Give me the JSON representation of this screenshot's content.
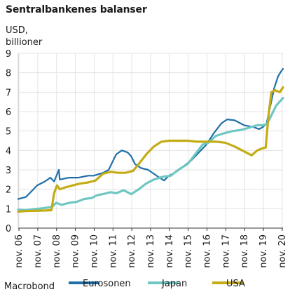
{
  "chart_data": {
    "type": "line",
    "title": "Sentralbankenes balanser",
    "ylabel_lines": [
      "USD,",
      "billioner"
    ],
    "source": "Macrobond",
    "ylim": [
      0,
      9
    ],
    "yticks": [
      0,
      1,
      2,
      3,
      4,
      5,
      6,
      7,
      8,
      9
    ],
    "xlim": [
      2006.79,
      2020.87
    ],
    "xticks": [
      {
        "x": 2006.83,
        "label": "nov. 06"
      },
      {
        "x": 2007.83,
        "label": "nov. 07"
      },
      {
        "x": 2008.83,
        "label": "nov. 08"
      },
      {
        "x": 2009.83,
        "label": "nov. 09"
      },
      {
        "x": 2010.83,
        "label": "nov. 10"
      },
      {
        "x": 2011.83,
        "label": "nov. 11"
      },
      {
        "x": 2012.83,
        "label": "nov. 12"
      },
      {
        "x": 2013.83,
        "label": "nov. 13"
      },
      {
        "x": 2014.83,
        "label": "nov. 14"
      },
      {
        "x": 2015.83,
        "label": "nov. 15"
      },
      {
        "x": 2016.83,
        "label": "nov. 16"
      },
      {
        "x": 2017.83,
        "label": "nov. 17"
      },
      {
        "x": 2018.83,
        "label": "nov. 18"
      },
      {
        "x": 2019.83,
        "label": "nov. 19"
      },
      {
        "x": 2020.83,
        "label": "nov. 20"
      }
    ],
    "grid": true,
    "legend_position": "bottom",
    "series": [
      {
        "name": "Eurosonen",
        "color": "#1f6fa8",
        "stroke_width": 2.2,
        "points": [
          [
            2006.79,
            1.5
          ],
          [
            2007.2,
            1.6
          ],
          [
            2007.5,
            1.9
          ],
          [
            2007.8,
            2.2
          ],
          [
            2008.2,
            2.4
          ],
          [
            2008.5,
            2.6
          ],
          [
            2008.7,
            2.4
          ],
          [
            2008.95,
            3.0
          ],
          [
            2009.0,
            2.5
          ],
          [
            2009.5,
            2.6
          ],
          [
            2010.0,
            2.6
          ],
          [
            2010.5,
            2.7
          ],
          [
            2010.8,
            2.7
          ],
          [
            2011.3,
            2.85
          ],
          [
            2011.6,
            3.0
          ],
          [
            2011.8,
            3.4
          ],
          [
            2012.0,
            3.8
          ],
          [
            2012.3,
            4.0
          ],
          [
            2012.6,
            3.9
          ],
          [
            2012.8,
            3.7
          ],
          [
            2013.0,
            3.3
          ],
          [
            2013.3,
            3.1
          ],
          [
            2013.7,
            3.0
          ],
          [
            2014.0,
            2.8
          ],
          [
            2014.3,
            2.6
          ],
          [
            2014.55,
            2.45
          ],
          [
            2014.8,
            2.7
          ],
          [
            2015.2,
            2.9
          ],
          [
            2015.6,
            3.2
          ],
          [
            2016.0,
            3.5
          ],
          [
            2016.4,
            3.9
          ],
          [
            2016.8,
            4.3
          ],
          [
            2017.2,
            4.9
          ],
          [
            2017.6,
            5.4
          ],
          [
            2017.9,
            5.6
          ],
          [
            2018.3,
            5.55
          ],
          [
            2018.8,
            5.3
          ],
          [
            2019.3,
            5.2
          ],
          [
            2019.6,
            5.1
          ],
          [
            2019.8,
            5.2
          ],
          [
            2020.0,
            5.4
          ],
          [
            2020.2,
            6.3
          ],
          [
            2020.4,
            7.2
          ],
          [
            2020.6,
            7.8
          ],
          [
            2020.75,
            8.05
          ],
          [
            2020.87,
            8.2
          ]
        ]
      },
      {
        "name": "Japan",
        "color": "#6fc7c2",
        "stroke_width": 3.2,
        "points": [
          [
            2006.79,
            0.95
          ],
          [
            2007.2,
            0.92
          ],
          [
            2007.6,
            0.98
          ],
          [
            2007.9,
            1.0
          ],
          [
            2008.3,
            1.05
          ],
          [
            2008.6,
            1.1
          ],
          [
            2008.8,
            1.3
          ],
          [
            2009.1,
            1.2
          ],
          [
            2009.5,
            1.3
          ],
          [
            2009.9,
            1.35
          ],
          [
            2010.3,
            1.5
          ],
          [
            2010.7,
            1.55
          ],
          [
            2011.0,
            1.7
          ],
          [
            2011.3,
            1.75
          ],
          [
            2011.7,
            1.85
          ],
          [
            2012.0,
            1.8
          ],
          [
            2012.4,
            1.95
          ],
          [
            2012.8,
            1.75
          ],
          [
            2013.2,
            2.0
          ],
          [
            2013.6,
            2.3
          ],
          [
            2014.0,
            2.5
          ],
          [
            2014.5,
            2.65
          ],
          [
            2014.9,
            2.7
          ],
          [
            2015.3,
            3.0
          ],
          [
            2015.8,
            3.3
          ],
          [
            2016.2,
            3.8
          ],
          [
            2016.6,
            4.3
          ],
          [
            2016.9,
            4.4
          ],
          [
            2017.3,
            4.75
          ],
          [
            2017.8,
            4.9
          ],
          [
            2018.2,
            5.0
          ],
          [
            2018.6,
            5.05
          ],
          [
            2019.0,
            5.15
          ],
          [
            2019.5,
            5.3
          ],
          [
            2019.8,
            5.3
          ],
          [
            2020.0,
            5.35
          ],
          [
            2020.2,
            5.7
          ],
          [
            2020.5,
            6.3
          ],
          [
            2020.87,
            6.7
          ]
        ]
      },
      {
        "name": "USA",
        "color": "#c4ac16",
        "stroke_width": 3.2,
        "points": [
          [
            2006.79,
            0.85
          ],
          [
            2007.2,
            0.88
          ],
          [
            2007.6,
            0.89
          ],
          [
            2008.0,
            0.9
          ],
          [
            2008.55,
            0.92
          ],
          [
            2008.7,
            1.8
          ],
          [
            2008.85,
            2.2
          ],
          [
            2009.0,
            2.0
          ],
          [
            2009.3,
            2.1
          ],
          [
            2009.7,
            2.2
          ],
          [
            2010.1,
            2.3
          ],
          [
            2010.5,
            2.35
          ],
          [
            2010.9,
            2.45
          ],
          [
            2011.3,
            2.8
          ],
          [
            2011.7,
            2.9
          ],
          [
            2012.1,
            2.85
          ],
          [
            2012.5,
            2.85
          ],
          [
            2012.9,
            2.95
          ],
          [
            2013.2,
            3.3
          ],
          [
            2013.6,
            3.8
          ],
          [
            2014.0,
            4.2
          ],
          [
            2014.4,
            4.45
          ],
          [
            2014.8,
            4.5
          ],
          [
            2015.3,
            4.5
          ],
          [
            2015.8,
            4.5
          ],
          [
            2016.3,
            4.45
          ],
          [
            2016.8,
            4.45
          ],
          [
            2017.3,
            4.45
          ],
          [
            2017.8,
            4.4
          ],
          [
            2018.3,
            4.2
          ],
          [
            2018.8,
            3.95
          ],
          [
            2019.2,
            3.75
          ],
          [
            2019.5,
            4.0
          ],
          [
            2019.75,
            4.1
          ],
          [
            2019.95,
            4.15
          ],
          [
            2020.1,
            5.8
          ],
          [
            2020.25,
            7.0
          ],
          [
            2020.45,
            7.1
          ],
          [
            2020.7,
            7.0
          ],
          [
            2020.87,
            7.25
          ]
        ]
      }
    ]
  }
}
